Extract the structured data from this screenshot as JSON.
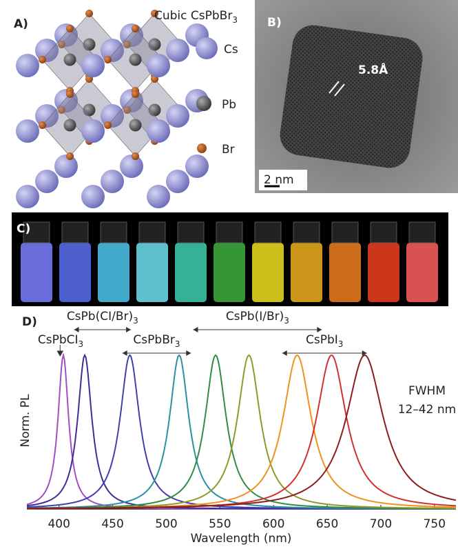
{
  "panels": {
    "a": {
      "label": "A)",
      "title": "Cubic CsPbBr",
      "title_sub": "3",
      "legend": [
        "Cs",
        "Pb",
        "Br"
      ]
    },
    "b": {
      "label": "B)",
      "spacing": "5.8Å",
      "scale": "2 nm"
    },
    "c": {
      "label": "C)"
    }
  },
  "chart_data": {
    "type": "line",
    "label": "D)",
    "xlabel": "Wavelength (nm)",
    "ylabel": "Norm. PL",
    "xlim": [
      370,
      770
    ],
    "xticks": [
      400,
      450,
      500,
      550,
      600,
      650,
      700,
      750
    ],
    "series": [
      {
        "color": "#a04ec0",
        "peak": 404,
        "fwhm": 12
      },
      {
        "color": "#3c2c9c",
        "peak": 424,
        "fwhm": 16
      },
      {
        "color": "#3f3fae",
        "peak": 466,
        "fwhm": 22
      },
      {
        "color": "#2a8fa4",
        "peak": 512,
        "fwhm": 22
      },
      {
        "color": "#2f8c46",
        "peak": 546,
        "fwhm": 24
      },
      {
        "color": "#8c9a2c",
        "peak": 577,
        "fwhm": 26
      },
      {
        "color": "#f0921e",
        "peak": 622,
        "fwhm": 32
      },
      {
        "color": "#d2302e",
        "peak": 654,
        "fwhm": 34
      },
      {
        "color": "#8c1c1c",
        "peak": 685,
        "fwhm": 42
      }
    ],
    "ranges": [
      {
        "text": "CsPb(CI/Br)",
        "sub": "3",
        "range": [
          414,
          467
        ]
      },
      {
        "text": "CsPb(I/Br)",
        "sub": "3",
        "range": [
          525,
          645
        ]
      },
      {
        "text": "CsPbBr",
        "sub": "3",
        "range": [
          459,
          523
        ]
      },
      {
        "text": "CsPbI",
        "sub": "3",
        "range": [
          608,
          687
        ]
      }
    ],
    "marker": {
      "text": "CsPbCI",
      "sub": "3",
      "at": 401
    },
    "annotation": [
      "FWHM",
      "12–42 nm"
    ]
  }
}
